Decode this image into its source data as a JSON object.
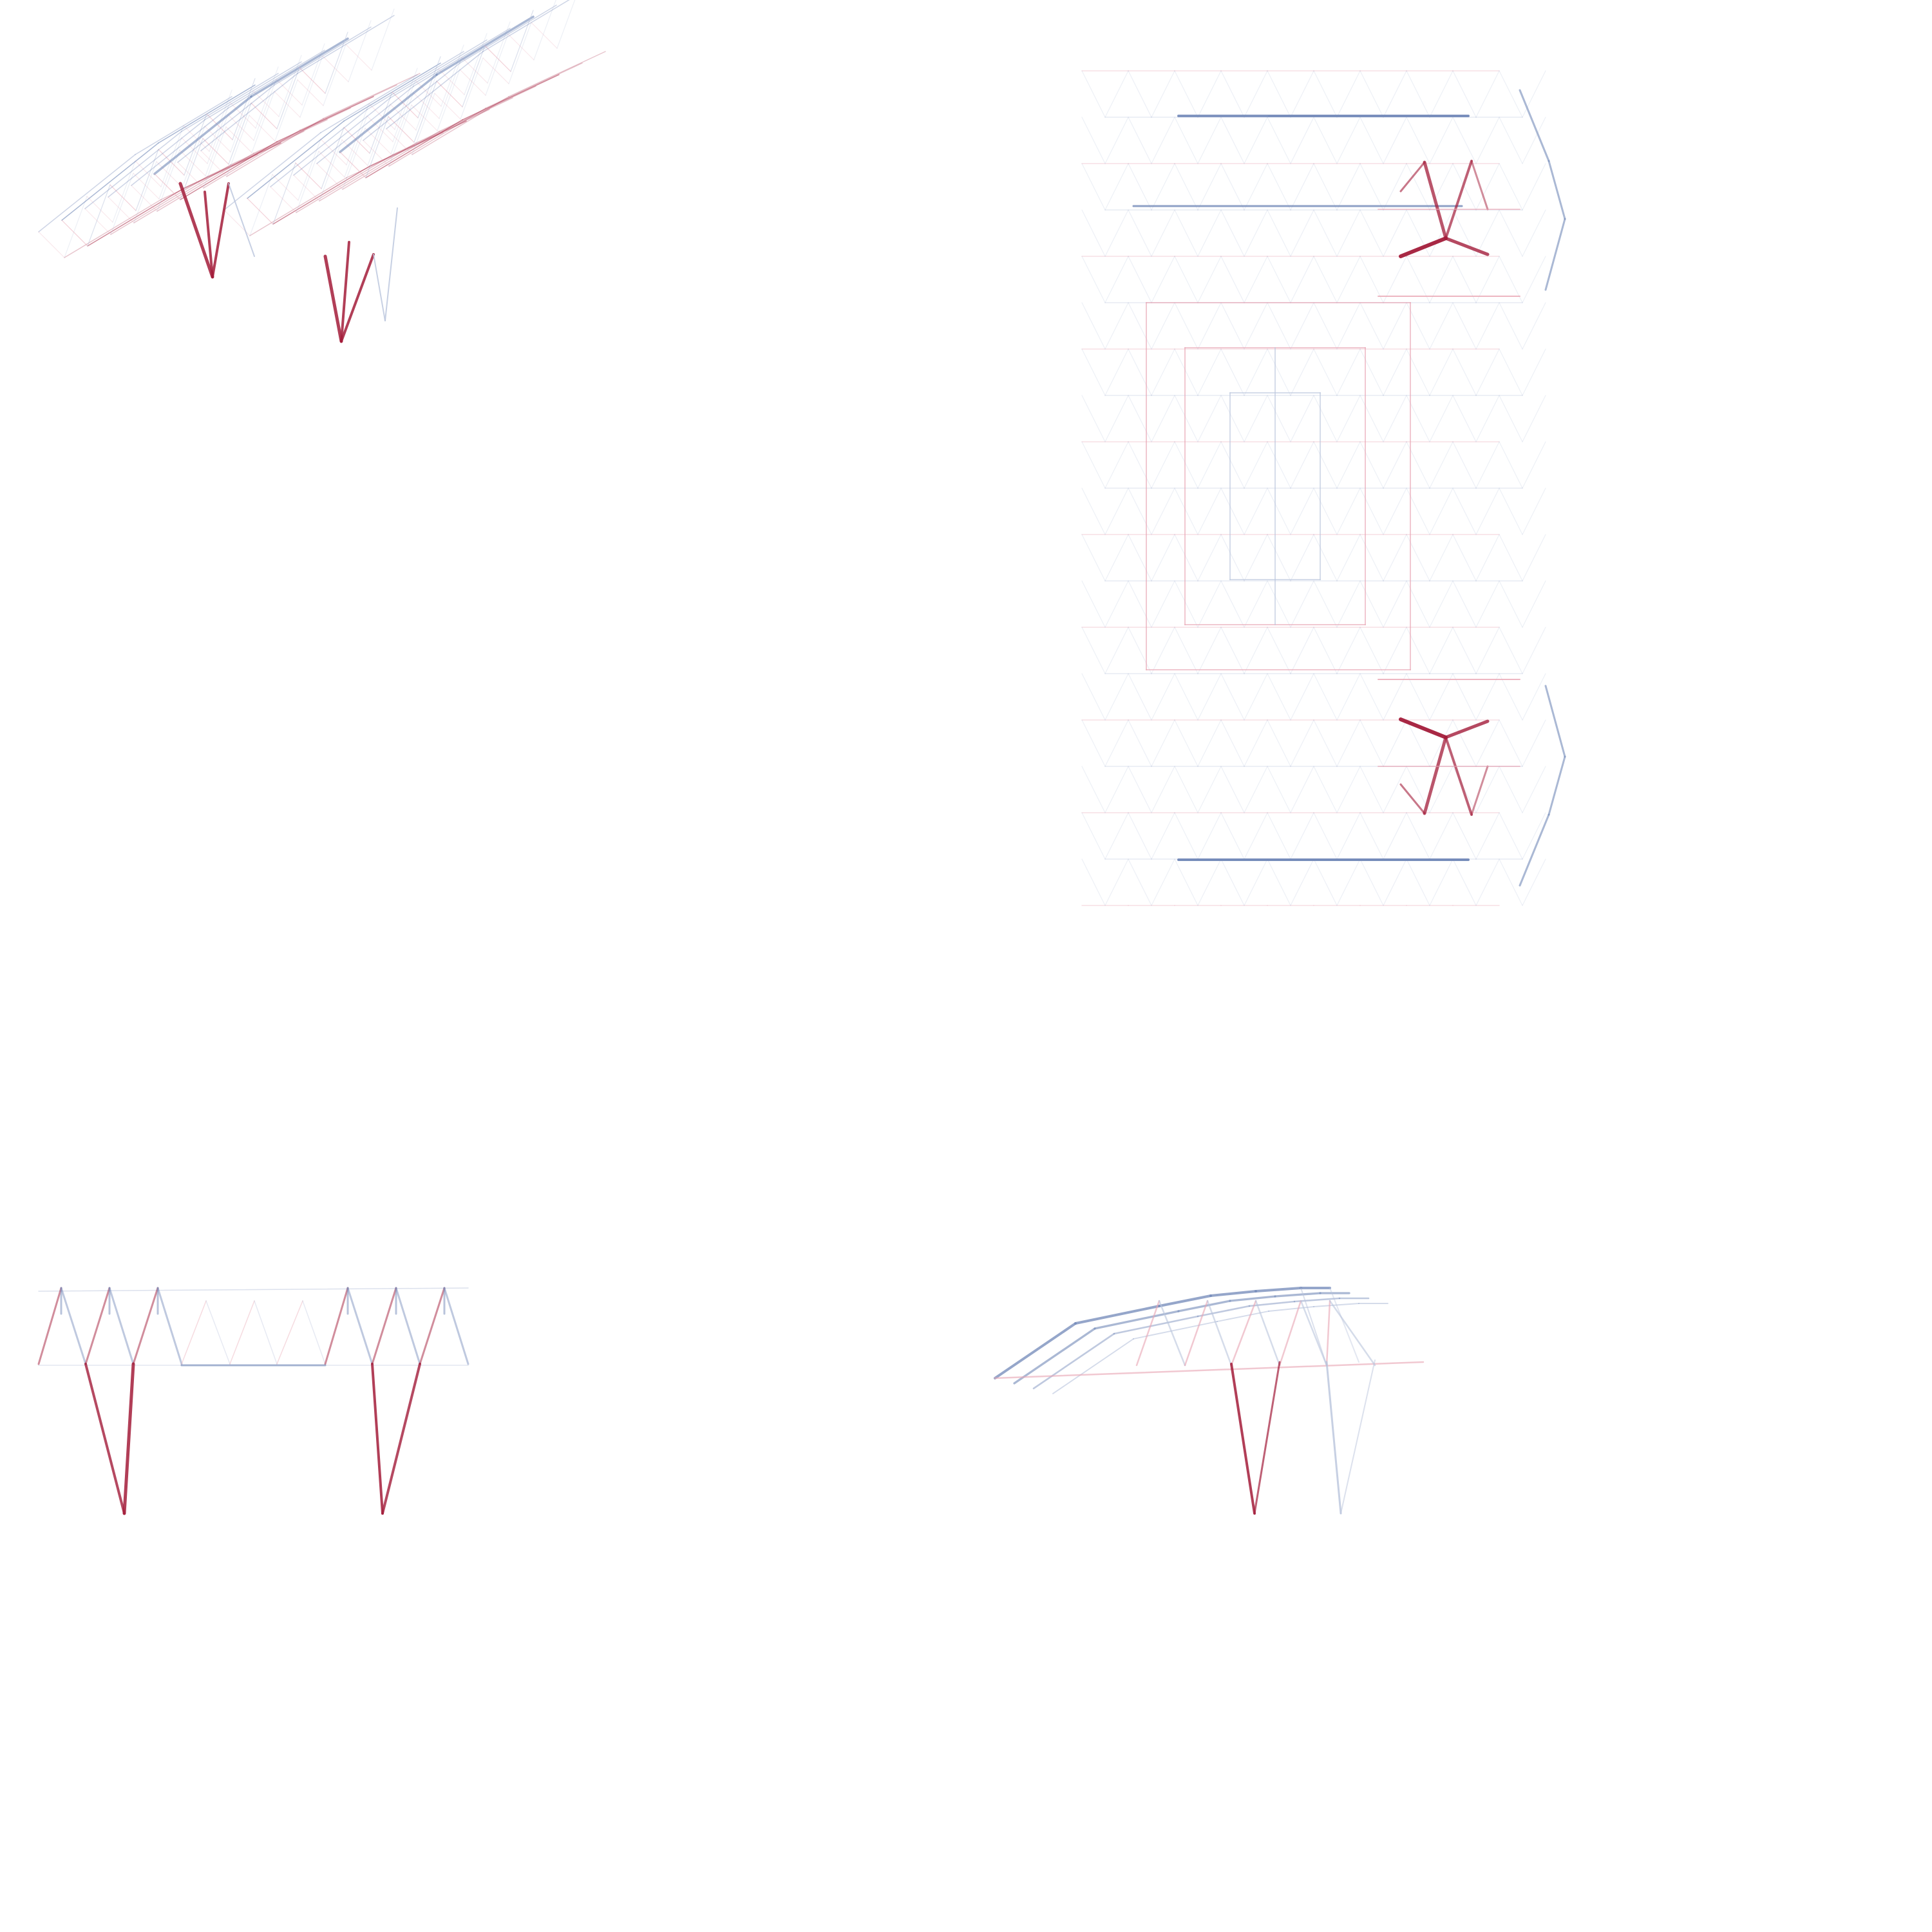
{
  "colors": {
    "compression": "#a31c3a",
    "tension": "#7288b8",
    "light_compression": "#e8a4b2",
    "light_tension": "#b9c4dc",
    "background": "#ffffff"
  },
  "views": [
    {
      "id": "axonometric",
      "projection": "isometric"
    },
    {
      "id": "plan",
      "projection": "top"
    },
    {
      "id": "front",
      "projection": "front"
    },
    {
      "id": "side",
      "projection": "side"
    }
  ],
  "structure": {
    "type": "space-frame canopy",
    "supports": 2,
    "legs_per_support": 3,
    "force_coloring": [
      "compression",
      "tension"
    ]
  }
}
